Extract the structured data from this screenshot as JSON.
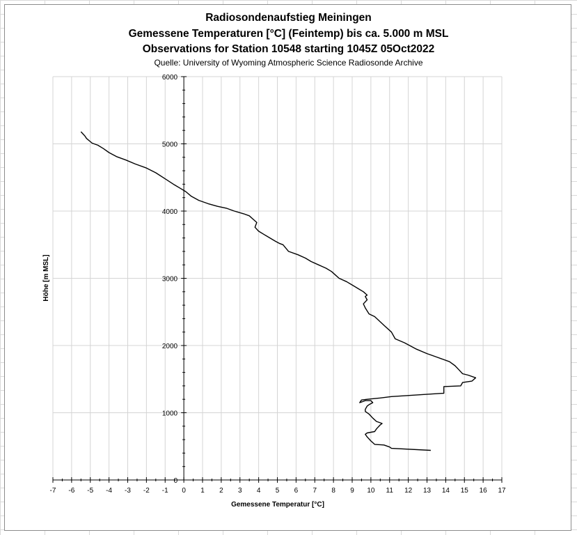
{
  "chart_data": {
    "type": "line",
    "title_lines": [
      "Radiosondenaufstieg Meiningen",
      "Gemessene Temperaturen [°C] (Feintemp) bis ca. 5.000 m MSL",
      "Observations for Station 10548 starting 1045Z 05Oct2022"
    ],
    "subtitle": "Quelle: University of Wyoming Atmospheric Science Radiosonde Archive",
    "xlabel": "Gemessene Temperatur [°C]",
    "ylabel": "Höhe [m MSL]",
    "xlim": [
      -7,
      17
    ],
    "ylim": [
      0,
      6000
    ],
    "x_ticks": [
      -7,
      -6,
      -5,
      -4,
      -3,
      -2,
      -1,
      0,
      1,
      2,
      3,
      4,
      5,
      6,
      7,
      8,
      9,
      10,
      11,
      12,
      13,
      14,
      15,
      16,
      17
    ],
    "y_ticks": [
      0,
      1000,
      2000,
      3000,
      4000,
      5000,
      6000
    ],
    "grid": true,
    "line_color": "#000000",
    "series": [
      {
        "x": [
          13.2,
          11.1,
          11.0,
          10.7,
          10.2,
          10.0,
          9.8,
          9.7,
          9.8,
          10.2,
          10.3,
          10.5,
          10.6,
          10.3,
          10.1,
          9.9,
          9.7,
          9.7,
          9.8,
          9.9,
          10.1,
          10.0,
          9.7,
          9.5,
          9.4,
          9.5,
          9.8,
          10.5,
          11.1,
          13.9,
          13.9,
          14.8,
          14.9,
          15.4,
          15.6,
          15.2,
          14.9,
          14.7,
          14.5,
          14.2,
          13.8,
          13.5,
          13.0,
          12.4,
          11.8,
          11.3,
          11.1,
          10.7,
          10.2,
          9.9,
          9.7,
          9.6,
          9.8,
          9.7,
          9.8,
          9.6,
          9.3,
          9.0,
          8.7,
          8.3,
          8.1,
          7.9,
          7.6,
          7.2,
          6.8,
          6.5,
          6.1,
          5.6,
          5.3,
          5.1,
          4.9,
          4.6,
          4.3,
          4.0,
          3.8,
          3.9,
          3.7,
          3.5,
          3.2,
          2.7,
          2.3,
          1.8,
          1.3,
          0.8,
          0.4,
          0.1,
          -0.2,
          -0.5,
          -1.0,
          -1.5,
          -2.0,
          -2.6,
          -3.1,
          -3.6,
          -4.0,
          -4.3,
          -4.6,
          -4.9,
          -5.2,
          -5.3,
          -5.4,
          -5.5
        ],
        "y": [
          440,
          470,
          490,
          520,
          530,
          580,
          640,
          680,
          700,
          720,
          760,
          820,
          840,
          870,
          920,
          980,
          1020,
          1050,
          1100,
          1120,
          1150,
          1180,
          1180,
          1160,
          1150,
          1190,
          1200,
          1220,
          1240,
          1290,
          1390,
          1400,
          1450,
          1470,
          1520,
          1560,
          1580,
          1640,
          1700,
          1760,
          1800,
          1830,
          1880,
          1950,
          2040,
          2100,
          2200,
          2300,
          2430,
          2470,
          2560,
          2620,
          2680,
          2730,
          2750,
          2800,
          2850,
          2900,
          2950,
          3000,
          3050,
          3100,
          3150,
          3200,
          3250,
          3300,
          3350,
          3400,
          3500,
          3520,
          3550,
          3600,
          3650,
          3700,
          3760,
          3830,
          3880,
          3930,
          3960,
          4000,
          4040,
          4070,
          4110,
          4160,
          4220,
          4290,
          4340,
          4390,
          4480,
          4570,
          4640,
          4700,
          4760,
          4810,
          4870,
          4930,
          4980,
          5010,
          5080,
          5120,
          5150,
          5180
        ]
      }
    ]
  }
}
